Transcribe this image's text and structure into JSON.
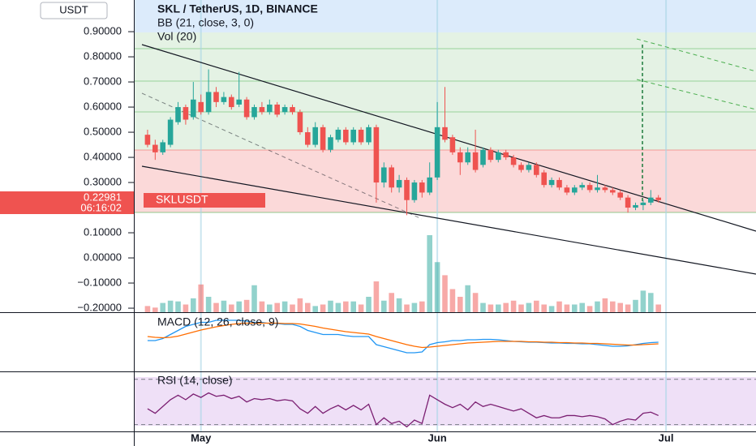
{
  "chart_data": {
    "type": "candlestick",
    "currency": "USDT",
    "title": "SKL / TetherUS, 1D, BINANCE",
    "indicators": [
      "BB (21, close, 3, 0)",
      "Vol (20)"
    ],
    "symbol": "SKLUSDT",
    "price_label": "0.22981",
    "countdown": "06:16:02",
    "up_color": "#26a69a",
    "down_color": "#ef5350",
    "x": [
      -7,
      -6,
      -5,
      -4,
      -3,
      -2,
      -1,
      0,
      1,
      2,
      3,
      4,
      5,
      6,
      7,
      8,
      9,
      10,
      11,
      12,
      13,
      14,
      15,
      16,
      17,
      18,
      19,
      20,
      21,
      22,
      23,
      24,
      25,
      26,
      27,
      28,
      29,
      30,
      31,
      32,
      33,
      34,
      35,
      36,
      37,
      38,
      39,
      40,
      41,
      42,
      43,
      44,
      45,
      46,
      47,
      48,
      49,
      50,
      51,
      52,
      53,
      54,
      55,
      56,
      57,
      58,
      59,
      60
    ],
    "open": [
      0.49,
      0.45,
      0.42,
      0.45,
      0.54,
      0.6,
      0.56,
      0.62,
      0.58,
      0.66,
      0.62,
      0.64,
      0.61,
      0.63,
      0.56,
      0.6,
      0.58,
      0.61,
      0.58,
      0.6,
      0.58,
      0.5,
      0.45,
      0.52,
      0.43,
      0.47,
      0.51,
      0.46,
      0.51,
      0.46,
      0.52,
      0.3,
      0.36,
      0.28,
      0.31,
      0.23,
      0.3,
      0.26,
      0.32,
      0.52,
      0.48,
      0.42,
      0.38,
      0.42,
      0.37,
      0.43,
      0.39,
      0.42,
      0.4,
      0.37,
      0.35,
      0.37,
      0.34,
      0.29,
      0.31,
      0.28,
      0.26,
      0.28,
      0.29,
      0.27,
      0.28,
      0.27,
      0.26,
      0.24,
      0.2,
      0.21,
      0.22,
      0.24
    ],
    "high": [
      0.51,
      0.47,
      0.47,
      0.56,
      0.62,
      0.61,
      0.7,
      0.65,
      0.75,
      0.68,
      0.66,
      0.65,
      0.74,
      0.64,
      0.61,
      0.62,
      0.63,
      0.62,
      0.61,
      0.61,
      0.59,
      0.52,
      0.54,
      0.53,
      0.49,
      0.52,
      0.52,
      0.52,
      0.52,
      0.53,
      0.53,
      0.38,
      0.37,
      0.33,
      0.32,
      0.31,
      0.31,
      0.38,
      0.62,
      0.68,
      0.49,
      0.44,
      0.44,
      0.51,
      0.44,
      0.44,
      0.43,
      0.43,
      0.41,
      0.38,
      0.38,
      0.38,
      0.35,
      0.32,
      0.32,
      0.29,
      0.29,
      0.3,
      0.3,
      0.33,
      0.29,
      0.28,
      0.27,
      0.25,
      0.22,
      0.23,
      0.27,
      0.25
    ],
    "low": [
      0.44,
      0.39,
      0.41,
      0.44,
      0.53,
      0.53,
      0.55,
      0.57,
      0.57,
      0.6,
      0.61,
      0.59,
      0.6,
      0.55,
      0.55,
      0.57,
      0.57,
      0.56,
      0.57,
      0.57,
      0.49,
      0.44,
      0.44,
      0.42,
      0.42,
      0.46,
      0.45,
      0.45,
      0.45,
      0.45,
      0.22,
      0.28,
      0.26,
      0.26,
      0.17,
      0.22,
      0.24,
      0.25,
      0.31,
      0.46,
      0.41,
      0.33,
      0.37,
      0.34,
      0.36,
      0.38,
      0.38,
      0.39,
      0.36,
      0.34,
      0.34,
      0.32,
      0.28,
      0.28,
      0.27,
      0.25,
      0.25,
      0.27,
      0.26,
      0.26,
      0.26,
      0.25,
      0.23,
      0.18,
      0.19,
      0.19,
      0.21,
      0.22
    ],
    "close": [
      0.45,
      0.42,
      0.46,
      0.55,
      0.6,
      0.55,
      0.63,
      0.58,
      0.66,
      0.62,
      0.64,
      0.6,
      0.63,
      0.56,
      0.6,
      0.58,
      0.61,
      0.57,
      0.6,
      0.58,
      0.5,
      0.45,
      0.52,
      0.43,
      0.48,
      0.51,
      0.46,
      0.51,
      0.46,
      0.52,
      0.3,
      0.36,
      0.28,
      0.31,
      0.23,
      0.3,
      0.26,
      0.32,
      0.52,
      0.47,
      0.42,
      0.38,
      0.42,
      0.35,
      0.43,
      0.39,
      0.42,
      0.4,
      0.37,
      0.35,
      0.37,
      0.33,
      0.29,
      0.31,
      0.28,
      0.26,
      0.28,
      0.29,
      0.27,
      0.28,
      0.27,
      0.26,
      0.24,
      0.2,
      0.21,
      0.22,
      0.24,
      0.22981
    ],
    "xlim": [
      -8.8,
      72.8
    ],
    "xticks": [
      {
        "value": 0,
        "label": "May"
      },
      {
        "value": 31,
        "label": "Jun"
      },
      {
        "value": 61,
        "label": "Jul"
      }
    ],
    "ylim": [
      -0.216,
      1.026
    ],
    "yticks": [
      {
        "value": 0.9,
        "label": "0.90000"
      },
      {
        "value": 0.8,
        "label": "0.80000"
      },
      {
        "value": 0.7,
        "label": "0.70000"
      },
      {
        "value": 0.6,
        "label": "0.60000"
      },
      {
        "value": 0.5,
        "label": "0.50000"
      },
      {
        "value": 0.4,
        "label": "0.40000"
      },
      {
        "value": 0.3,
        "label": "0.30000"
      },
      {
        "value": 0.1,
        "label": "0.10000"
      },
      {
        "value": 0,
        "label": "0.00000"
      },
      {
        "value": -0.1,
        "label": "−0.10000"
      },
      {
        "value": -0.2,
        "label": "−0.20000"
      }
    ],
    "volume": {
      "ylim": [
        0,
        100
      ],
      "values": [
        8,
        6,
        12,
        15,
        14,
        10,
        18,
        36,
        20,
        12,
        15,
        10,
        14,
        16,
        35,
        14,
        10,
        12,
        14,
        10,
        18,
        12,
        8,
        10,
        15,
        12,
        14,
        14,
        10,
        20,
        40,
        15,
        25,
        18,
        10,
        12,
        14,
        100,
        65,
        48,
        30,
        20,
        35,
        25,
        12,
        10,
        10,
        12,
        15,
        10,
        12,
        15,
        10,
        8,
        14,
        10,
        10,
        12,
        8,
        14,
        18,
        14,
        12,
        10,
        16,
        28,
        25,
        10
      ]
    },
    "macd": {
      "title": "MACD (12, 26, close, 9)",
      "ylim": [
        -0.106,
        0.04
      ],
      "series": [
        {
          "color": "#2196f3",
          "values": [
            -0.03,
            -0.03,
            -0.025,
            -0.015,
            -0.005,
            0.005,
            0.01,
            0.015,
            0.015,
            0.02,
            0.02,
            0.02,
            0.02,
            0.018,
            0.015,
            0.015,
            0.012,
            0.012,
            0.01,
            0.01,
            0.005,
            -0.005,
            -0.01,
            -0.015,
            -0.015,
            -0.015,
            -0.018,
            -0.02,
            -0.02,
            -0.02,
            -0.04,
            -0.045,
            -0.05,
            -0.055,
            -0.06,
            -0.06,
            -0.058,
            -0.04,
            -0.035,
            -0.033,
            -0.03,
            -0.03,
            -0.028,
            -0.028,
            -0.027,
            -0.027,
            -0.028,
            -0.03,
            -0.032,
            -0.033,
            -0.034,
            -0.034,
            -0.035,
            -0.036,
            -0.036,
            -0.037,
            -0.037,
            -0.038,
            -0.038,
            -0.04,
            -0.042,
            -0.044,
            -0.044,
            -0.043,
            -0.04,
            -0.037,
            -0.035,
            -0.034
          ]
        },
        {
          "color": "#ff6d00",
          "values": [
            -0.02,
            -0.022,
            -0.023,
            -0.022,
            -0.019,
            -0.014,
            -0.009,
            -0.004,
            0,
            0.004,
            0.007,
            0.01,
            0.012,
            0.013,
            0.013,
            0.013,
            0.013,
            0.013,
            0.012,
            0.012,
            0.011,
            0.008,
            0.005,
            0.001,
            -0.002,
            -0.005,
            -0.008,
            -0.01,
            -0.012,
            -0.014,
            -0.02,
            -0.025,
            -0.03,
            -0.035,
            -0.04,
            -0.044,
            -0.047,
            -0.046,
            -0.044,
            -0.042,
            -0.04,
            -0.038,
            -0.036,
            -0.035,
            -0.034,
            -0.033,
            -0.032,
            -0.032,
            -0.032,
            -0.032,
            -0.033,
            -0.033,
            -0.034,
            -0.034,
            -0.035,
            -0.035,
            -0.036,
            -0.036,
            -0.037,
            -0.037,
            -0.038,
            -0.039,
            -0.04,
            -0.041,
            -0.041,
            -0.04,
            -0.039,
            -0.038
          ]
        }
      ]
    },
    "rsi": {
      "title": "RSI (14, close)",
      "ylim": [
        24,
        77
      ],
      "bands": [
        30,
        70
      ],
      "color": "#7b1f72",
      "values": [
        44,
        40,
        46,
        52,
        56,
        52,
        57,
        54,
        58,
        55,
        56,
        53,
        55,
        50,
        53,
        52,
        53,
        51,
        52,
        51,
        44,
        40,
        46,
        40,
        44,
        47,
        43,
        47,
        43,
        48,
        30,
        36,
        31,
        33,
        28,
        34,
        31,
        56,
        52,
        48,
        45,
        48,
        43,
        50,
        46,
        48,
        46,
        44,
        42,
        44,
        40,
        36,
        38,
        36,
        36,
        38,
        38,
        37,
        38,
        37,
        35,
        30,
        33,
        35,
        34,
        40,
        41,
        38
      ]
    }
  }
}
